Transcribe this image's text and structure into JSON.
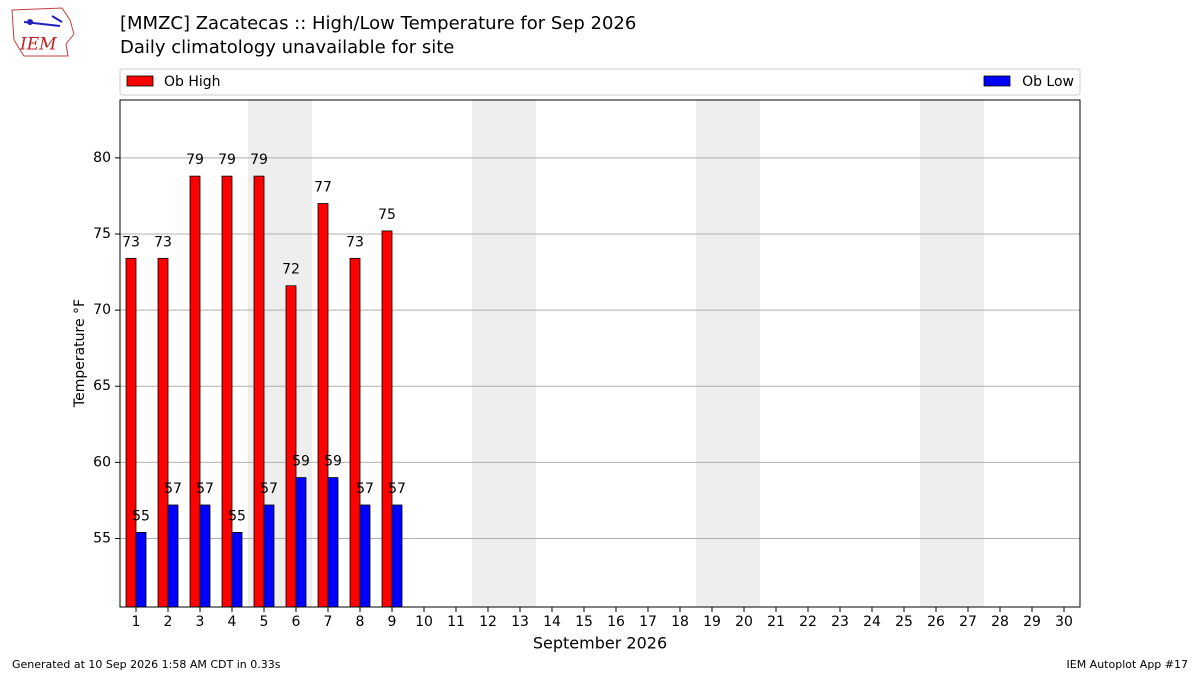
{
  "logo_text": "IEM",
  "chart_data": {
    "type": "bar",
    "title": "[MMZC] Zacatecas :: High/Low Temperature for Sep 2026",
    "subtitle": "Daily climatology unavailable for site",
    "y_label": "Temperature °F",
    "x_label": "September 2026",
    "categories": [
      "1",
      "2",
      "3",
      "4",
      "5",
      "6",
      "7",
      "8",
      "9",
      "10",
      "11",
      "12",
      "13",
      "14",
      "15",
      "16",
      "17",
      "18",
      "19",
      "20",
      "21",
      "22",
      "23",
      "24",
      "25",
      "26",
      "27",
      "28",
      "29",
      "30"
    ],
    "series": [
      {
        "name": "Ob High",
        "color": "#ff0000",
        "values": [
          73.4,
          73.4,
          78.8,
          78.8,
          78.8,
          71.6,
          77,
          73.4,
          75.2,
          null,
          null,
          null,
          null,
          null,
          null,
          null,
          null,
          null,
          null,
          null,
          null,
          null,
          null,
          null,
          null,
          null,
          null,
          null,
          null,
          null
        ],
        "value_labels": [
          "73",
          "73",
          "79",
          "79",
          "79",
          "72",
          "77",
          "73",
          "75",
          null,
          null,
          null,
          null,
          null,
          null,
          null,
          null,
          null,
          null,
          null,
          null,
          null,
          null,
          null,
          null,
          null,
          null,
          null,
          null,
          null
        ]
      },
      {
        "name": "Ob Low",
        "color": "#0000ff",
        "values": [
          55.4,
          57.2,
          57.2,
          55.4,
          57.2,
          59,
          59,
          57.2,
          57.2,
          null,
          null,
          null,
          null,
          null,
          null,
          null,
          null,
          null,
          null,
          null,
          null,
          null,
          null,
          null,
          null,
          null,
          null,
          null,
          null,
          null
        ],
        "value_labels": [
          "55",
          "57",
          "57",
          "55",
          "57",
          "59",
          "59",
          "57",
          "57",
          null,
          null,
          null,
          null,
          null,
          null,
          null,
          null,
          null,
          null,
          null,
          null,
          null,
          null,
          null,
          null,
          null,
          null,
          null,
          null,
          null
        ]
      }
    ],
    "ylim": [
      50.5,
      83.8
    ],
    "yticks": [
      55,
      60,
      65,
      70,
      75,
      80
    ],
    "grid": true,
    "legend": "top",
    "footer_left": "Generated at 10 Sep 2026 1:58 AM CDT in 0.33s",
    "footer_right": "IEM Autoplot App #17"
  }
}
